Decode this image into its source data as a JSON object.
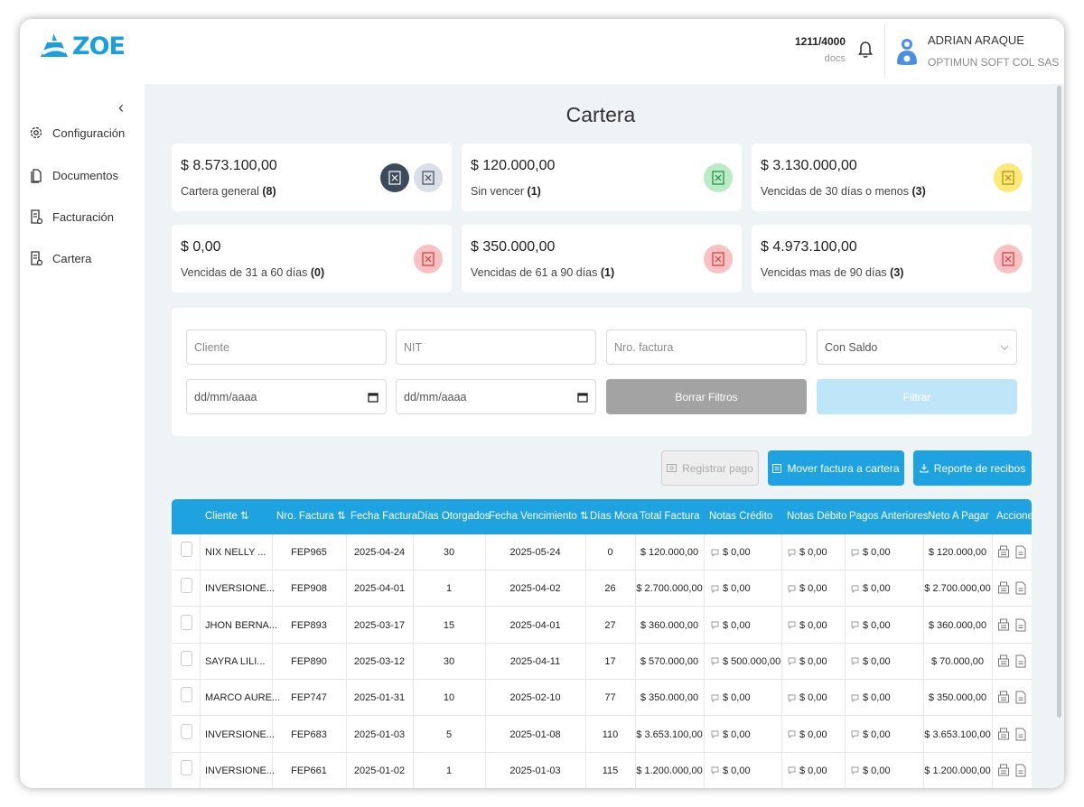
{
  "app": {
    "logo_text": "ZOE",
    "brand_color": "#1aa0dc"
  },
  "header": {
    "docs_count": "1211/4000",
    "docs_label": "docs",
    "user_name": "ADRIAN ARAQUE",
    "company": "OPTIMUN SOFT COL SAS"
  },
  "sidebar": {
    "collapse": "‹",
    "items": [
      {
        "label": "Configuración",
        "icon": "gear-icon"
      },
      {
        "label": "Documentos",
        "icon": "documents-icon"
      },
      {
        "label": "Facturación",
        "icon": "invoice-icon"
      },
      {
        "label": "Cartera",
        "icon": "wallet-icon"
      }
    ]
  },
  "page": {
    "title": "Cartera"
  },
  "cards": [
    {
      "amount": "$ 8.573.100,00",
      "label": "Cartera general",
      "count": "(8)"
    },
    {
      "amount": "$ 120.000,00",
      "label": "Sin vencer",
      "count": "(1)"
    },
    {
      "amount": "$ 3.130.000,00",
      "label": "Vencidas de 30 días o menos",
      "count": "(3)"
    },
    {
      "amount": "$ 0,00",
      "label": "Vencidas de 31 a 60 días",
      "count": "(0)"
    },
    {
      "amount": "$ 350.000,00",
      "label": "Vencidas de 61 a 90 días",
      "count": "(1)"
    },
    {
      "amount": "$ 4.973.100,00",
      "label": "Vencidas mas de 90 días",
      "count": "(3)"
    }
  ],
  "filters": {
    "cliente_placeholder": "Cliente",
    "nit_placeholder": "NIT",
    "factura_placeholder": "Nro. factura",
    "saldo_value": "Con Saldo",
    "date_from": "dd/mm/aaaa",
    "date_to": "dd/mm/aaaa",
    "clear_label": "Borrar Filtros",
    "filter_label": "Filtrar"
  },
  "actions": {
    "register_payment": "Registrar pago",
    "move_invoice": "Mover factura a cartera",
    "receipts_report": "Reporte de recibos"
  },
  "table": {
    "headers": [
      "Cliente",
      "Nro. Factura",
      "Fecha Factura",
      "Días Otorgados",
      "Fecha Vencimiento",
      "Días Mora",
      "Total Factura",
      "Notas Crédito",
      "Notas Débito",
      "Pagos Anteriores",
      "Neto A Pagar",
      "Acciones"
    ],
    "sort_icon": "⇅",
    "rows": [
      {
        "cliente": "NIX NELLY ...",
        "factura": "FEP965",
        "fecha": "2025-04-24",
        "dias": "30",
        "vence": "2025-05-24",
        "mora": "0",
        "total": "$ 120.000,00",
        "credito": "$ 0,00",
        "debito": "$ 0,00",
        "pagos": "$ 0,00",
        "neto": "$ 120.000,00"
      },
      {
        "cliente": "INVERSIONE...",
        "factura": "FEP908",
        "fecha": "2025-04-01",
        "dias": "1",
        "vence": "2025-04-02",
        "mora": "26",
        "total": "$ 2.700.000,00",
        "credito": "$ 0,00",
        "debito": "$ 0,00",
        "pagos": "$ 0,00",
        "neto": "$ 2.700.000,00"
      },
      {
        "cliente": "JHON BERNA...",
        "factura": "FEP893",
        "fecha": "2025-03-17",
        "dias": "15",
        "vence": "2025-04-01",
        "mora": "27",
        "total": "$ 360.000,00",
        "credito": "$ 0,00",
        "debito": "$ 0,00",
        "pagos": "$ 0,00",
        "neto": "$ 360.000,00"
      },
      {
        "cliente": "SAYRA LILI...",
        "factura": "FEP890",
        "fecha": "2025-03-12",
        "dias": "30",
        "vence": "2025-04-11",
        "mora": "17",
        "total": "$ 570.000,00",
        "credito": "$ 500.000,00",
        "debito": "$ 0,00",
        "pagos": "$ 0,00",
        "neto": "$ 70.000,00"
      },
      {
        "cliente": "MARCO AURE...",
        "factura": "FEP747",
        "fecha": "2025-01-31",
        "dias": "10",
        "vence": "2025-02-10",
        "mora": "77",
        "total": "$ 350.000,00",
        "credito": "$ 0,00",
        "debito": "$ 0,00",
        "pagos": "$ 0,00",
        "neto": "$ 350.000,00"
      },
      {
        "cliente": "INVERSIONE...",
        "factura": "FEP683",
        "fecha": "2025-01-03",
        "dias": "5",
        "vence": "2025-01-08",
        "mora": "110",
        "total": "$ 3.653.100,00",
        "credito": "$ 0,00",
        "debito": "$ 0,00",
        "pagos": "$ 0,00",
        "neto": "$ 3.653.100,00"
      },
      {
        "cliente": "INVERSIONE...",
        "factura": "FEP661",
        "fecha": "2025-01-02",
        "dias": "1",
        "vence": "2025-01-03",
        "mora": "115",
        "total": "$ 1.200.000,00",
        "credito": "$ 0,00",
        "debito": "$ 0,00",
        "pagos": "$ 0,00",
        "neto": "$ 1.200.000,00"
      }
    ]
  }
}
